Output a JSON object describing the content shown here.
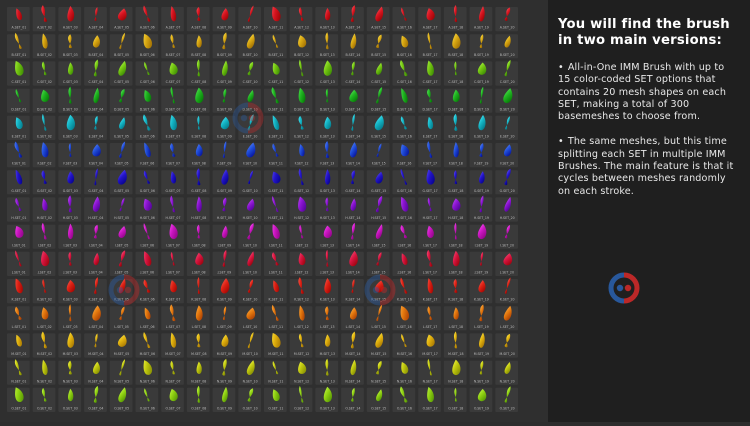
{
  "grid": {
    "set_letters": [
      "A",
      "B",
      "C",
      "D",
      "E",
      "F",
      "G",
      "H",
      "I",
      "J",
      "K",
      "L",
      "M",
      "N",
      "O"
    ],
    "mesh_count": 20,
    "label_pattern": "{L}.SET_{NN}",
    "set_colors": [
      "#d5141f",
      "#d8a712",
      "#74c411",
      "#1fb220",
      "#14b3c3",
      "#1f4cd6",
      "#2313c6",
      "#8a14d0",
      "#c916c0",
      "#d5143f",
      "#dc2114",
      "#e4780e",
      "#e0b00e",
      "#bfc70f",
      "#8fd012"
    ],
    "empty_cell_color": "#3a3a3a",
    "background_color": "#2f2f2f"
  },
  "info": {
    "heading": "You will find the brush in two main versions:",
    "bullet": "•",
    "paragraphs": [
      "All-in-One IMM Brush with up to 15 color-coded SET options that contains 20 mesh shapes on each SET, making a total of 300 basemeshes to choose from.",
      "The same meshes, but this time splitting each SET in multiple IMM Brushes. The main feature is that it cycles between meshes randomly on each stroke."
    ],
    "panel_color": "#1f1f1f"
  },
  "watermark": {
    "logo_colors": [
      "#cc2a2a",
      "#2a5faa"
    ],
    "icon": "circular-brand-logo"
  }
}
